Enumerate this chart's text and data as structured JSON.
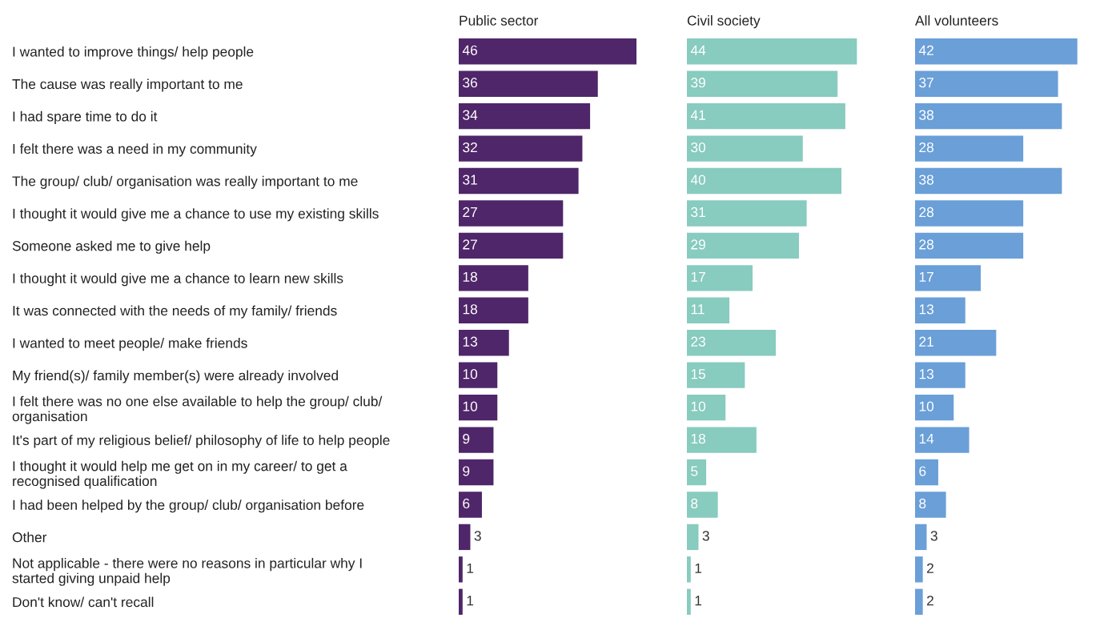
{
  "chart_data": [
    {
      "type": "bar",
      "orientation": "horizontal",
      "title": "Public sector",
      "data_labels": true,
      "tick_labels": "y",
      "categories": [
        "I wanted to improve things/ help people",
        "The cause was really important to me",
        "I had spare time to do it",
        "I felt there was a need in my community",
        "The group/ club/ organisation was really important to me",
        "I thought it would give me a chance to use my existing skills",
        "Someone asked me to give help",
        "I thought it would give me a chance to learn new skills",
        "It was connected with the needs of my family/ friends",
        "I wanted to meet people/ make friends",
        "My friend(s)/ family member(s) were already involved",
        "I felt there was no one else available to help the group/ club/\norganisation",
        "It's part of my religious belief/ philosophy of life to help people",
        "I thought it would help me get on in my career/ to get a\nrecognised qualification",
        "I had been helped by the group/ club/ organisation before",
        "Other",
        "Not applicable - there were no reasons in particular why I\nstarted giving unpaid help",
        "Don't know/ can't recall"
      ],
      "series": [
        {
          "color": "#4f2669",
          "values": [
            46,
            36,
            34,
            32,
            31,
            27,
            27,
            18,
            18,
            13,
            10,
            10,
            9,
            9,
            6,
            3,
            1,
            1
          ]
        }
      ]
    },
    {
      "type": "bar",
      "orientation": "horizontal",
      "title": "Civil society",
      "data_labels": true,
      "tick_labels": false,
      "categories": [
        null,
        null,
        null,
        null,
        null,
        null,
        null,
        null,
        null,
        null,
        null,
        null,
        null,
        null,
        null,
        null,
        null,
        null
      ],
      "series": [
        {
          "color": "#88cbbf",
          "values": [
            44,
            39,
            41,
            30,
            40,
            31,
            29,
            17,
            11,
            23,
            15,
            10,
            18,
            5,
            8,
            3,
            1,
            1
          ]
        }
      ]
    },
    {
      "type": "bar",
      "orientation": "horizontal",
      "title": "All volunteers",
      "data_labels": true,
      "tick_labels": false,
      "categories": [
        null,
        null,
        null,
        null,
        null,
        null,
        null,
        null,
        null,
        null,
        null,
        null,
        null,
        null,
        null,
        null,
        null,
        null
      ],
      "series": [
        {
          "color": "#6a9fd8",
          "values": [
            42,
            37,
            38,
            28,
            38,
            28,
            28,
            17,
            13,
            21,
            13,
            10,
            14,
            6,
            8,
            3,
            2,
            2
          ]
        }
      ]
    }
  ]
}
